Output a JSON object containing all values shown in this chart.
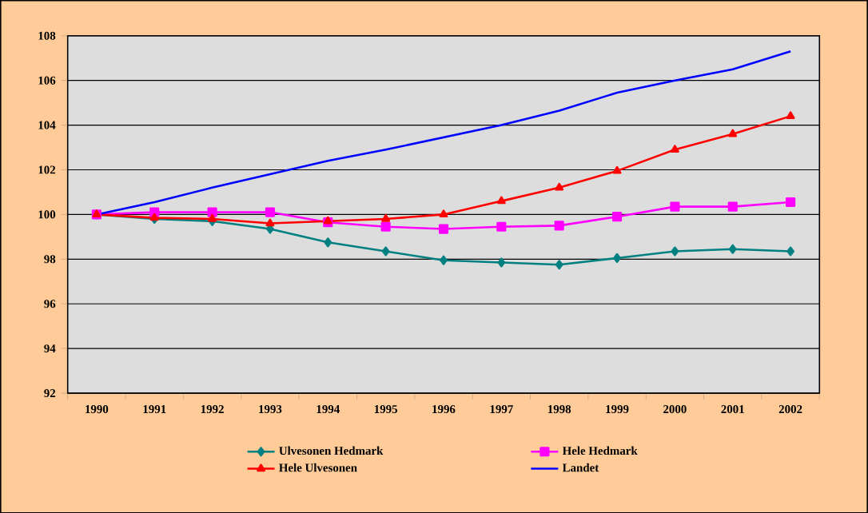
{
  "chart_data": {
    "type": "line",
    "categories": [
      "1990",
      "1991",
      "1992",
      "1993",
      "1994",
      "1995",
      "1996",
      "1997",
      "1998",
      "1999",
      "2000",
      "2001",
      "2002"
    ],
    "ylim": [
      92,
      108
    ],
    "yticks": [
      92,
      94,
      96,
      98,
      100,
      102,
      104,
      106,
      108
    ],
    "grid": "y",
    "legend": "bottom",
    "series": [
      {
        "name": "Ulvesonen Hedmark",
        "color": "#008080",
        "marker": "diamond",
        "values": [
          100,
          99.8,
          99.7,
          99.35,
          98.75,
          98.35,
          97.95,
          97.85,
          97.75,
          98.05,
          98.35,
          98.45,
          98.35
        ]
      },
      {
        "name": "Hele Hedmark",
        "color": "#ff00ff",
        "marker": "square",
        "values": [
          100,
          100.1,
          100.1,
          100.1,
          99.65,
          99.45,
          99.35,
          99.45,
          99.5,
          99.9,
          100.35,
          100.35,
          100.55
        ]
      },
      {
        "name": "Hele Ulvesonen",
        "color": "#ff0000",
        "marker": "triangle",
        "values": [
          100,
          99.85,
          99.8,
          99.6,
          99.7,
          99.8,
          100,
          100.6,
          101.2,
          101.95,
          102.9,
          103.6,
          104.4
        ]
      },
      {
        "name": "Landet",
        "color": "#0000ff",
        "marker": "none",
        "values": [
          100,
          100.55,
          101.2,
          101.8,
          102.4,
          102.9,
          103.45,
          104,
          104.65,
          105.45,
          106,
          106.5,
          107.3
        ]
      }
    ]
  }
}
